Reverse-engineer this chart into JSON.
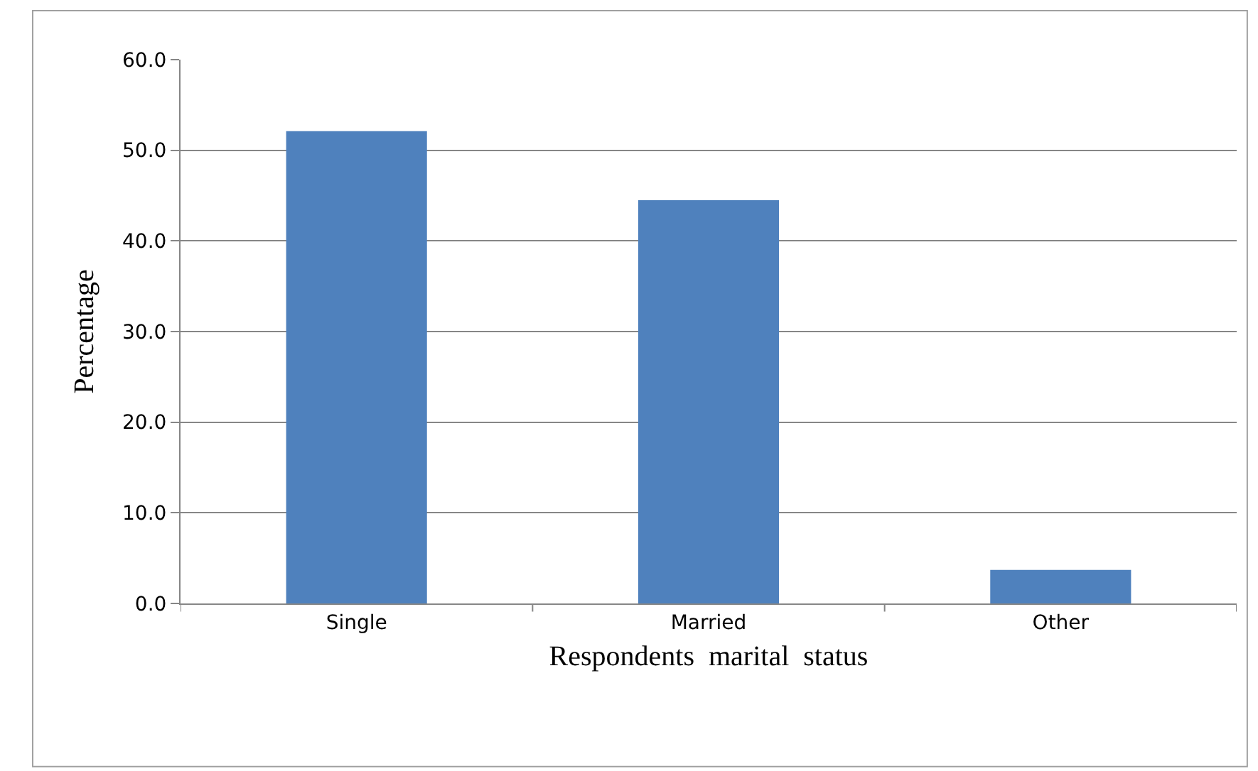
{
  "chart_data": {
    "type": "bar",
    "xlabel": "Respondents  marital  status",
    "ylabel": "Percentage",
    "categories": [
      "Single",
      "Married",
      "Other"
    ],
    "values": [
      52.1,
      44.5,
      3.7
    ],
    "color": "#4f81bd",
    "ylim": [
      0,
      60
    ],
    "yticks": [
      {
        "value": 0,
        "label": "0.0"
      },
      {
        "value": 10,
        "label": "10.0"
      },
      {
        "value": 20,
        "label": "20.0"
      },
      {
        "value": 30,
        "label": "30.0"
      },
      {
        "value": 40,
        "label": "40.0"
      },
      {
        "value": 50,
        "label": "50.0"
      },
      {
        "value": 60,
        "label": "60.0"
      }
    ],
    "grid": "y",
    "legend": false
  }
}
